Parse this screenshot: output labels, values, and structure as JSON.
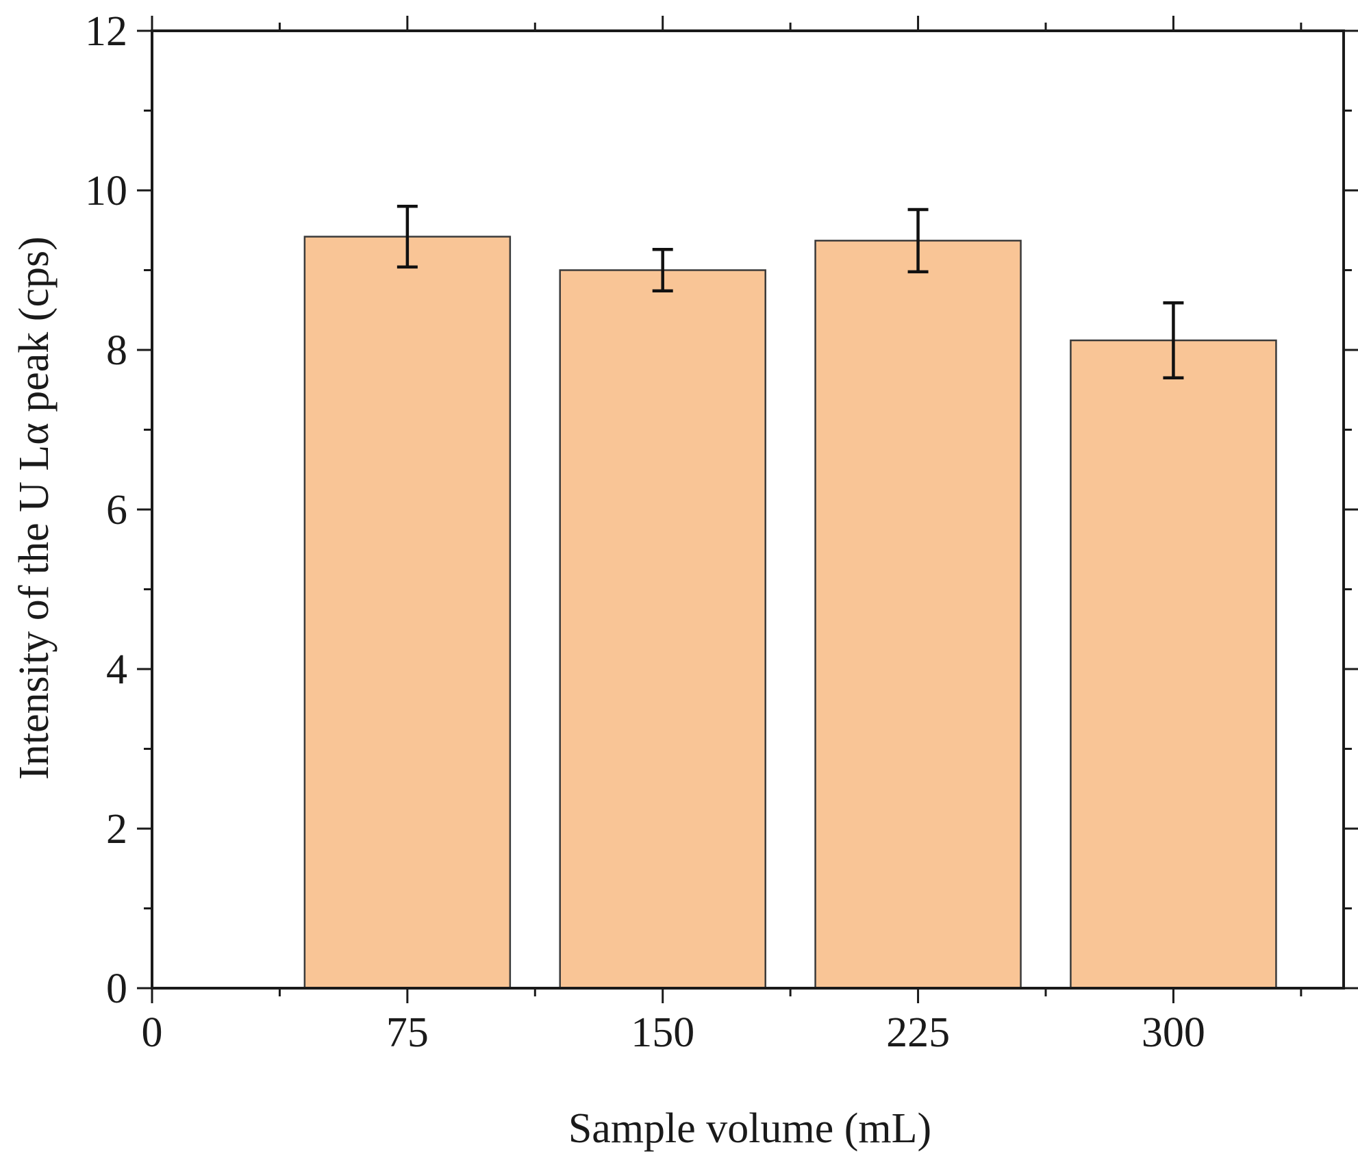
{
  "chart_data": {
    "type": "bar",
    "xlabel": "Sample volume (mL)",
    "ylabel": "Intensity of the U Lα peak (cps)",
    "x": [
      75,
      150,
      225,
      300
    ],
    "values": [
      9.42,
      9.0,
      9.37,
      8.12
    ],
    "errors": [
      0.38,
      0.26,
      0.39,
      0.47
    ],
    "xlim": [
      0,
      350
    ],
    "ylim": [
      0,
      12
    ],
    "xticks": [
      0,
      75,
      150,
      225,
      300
    ],
    "xtick_labels": [
      "0",
      "75",
      "150",
      "225",
      "300"
    ],
    "yticks": [
      0,
      2,
      4,
      6,
      8,
      10,
      12
    ],
    "ytick_labels": [
      "0",
      "2",
      "4",
      "6",
      "8",
      "10",
      "12"
    ],
    "grid": false,
    "colors": {
      "bar_fill": "#f9c596",
      "bar_edge": "#3a3a3a",
      "axis": "#1a1a1a",
      "error_bar": "#111111"
    }
  }
}
